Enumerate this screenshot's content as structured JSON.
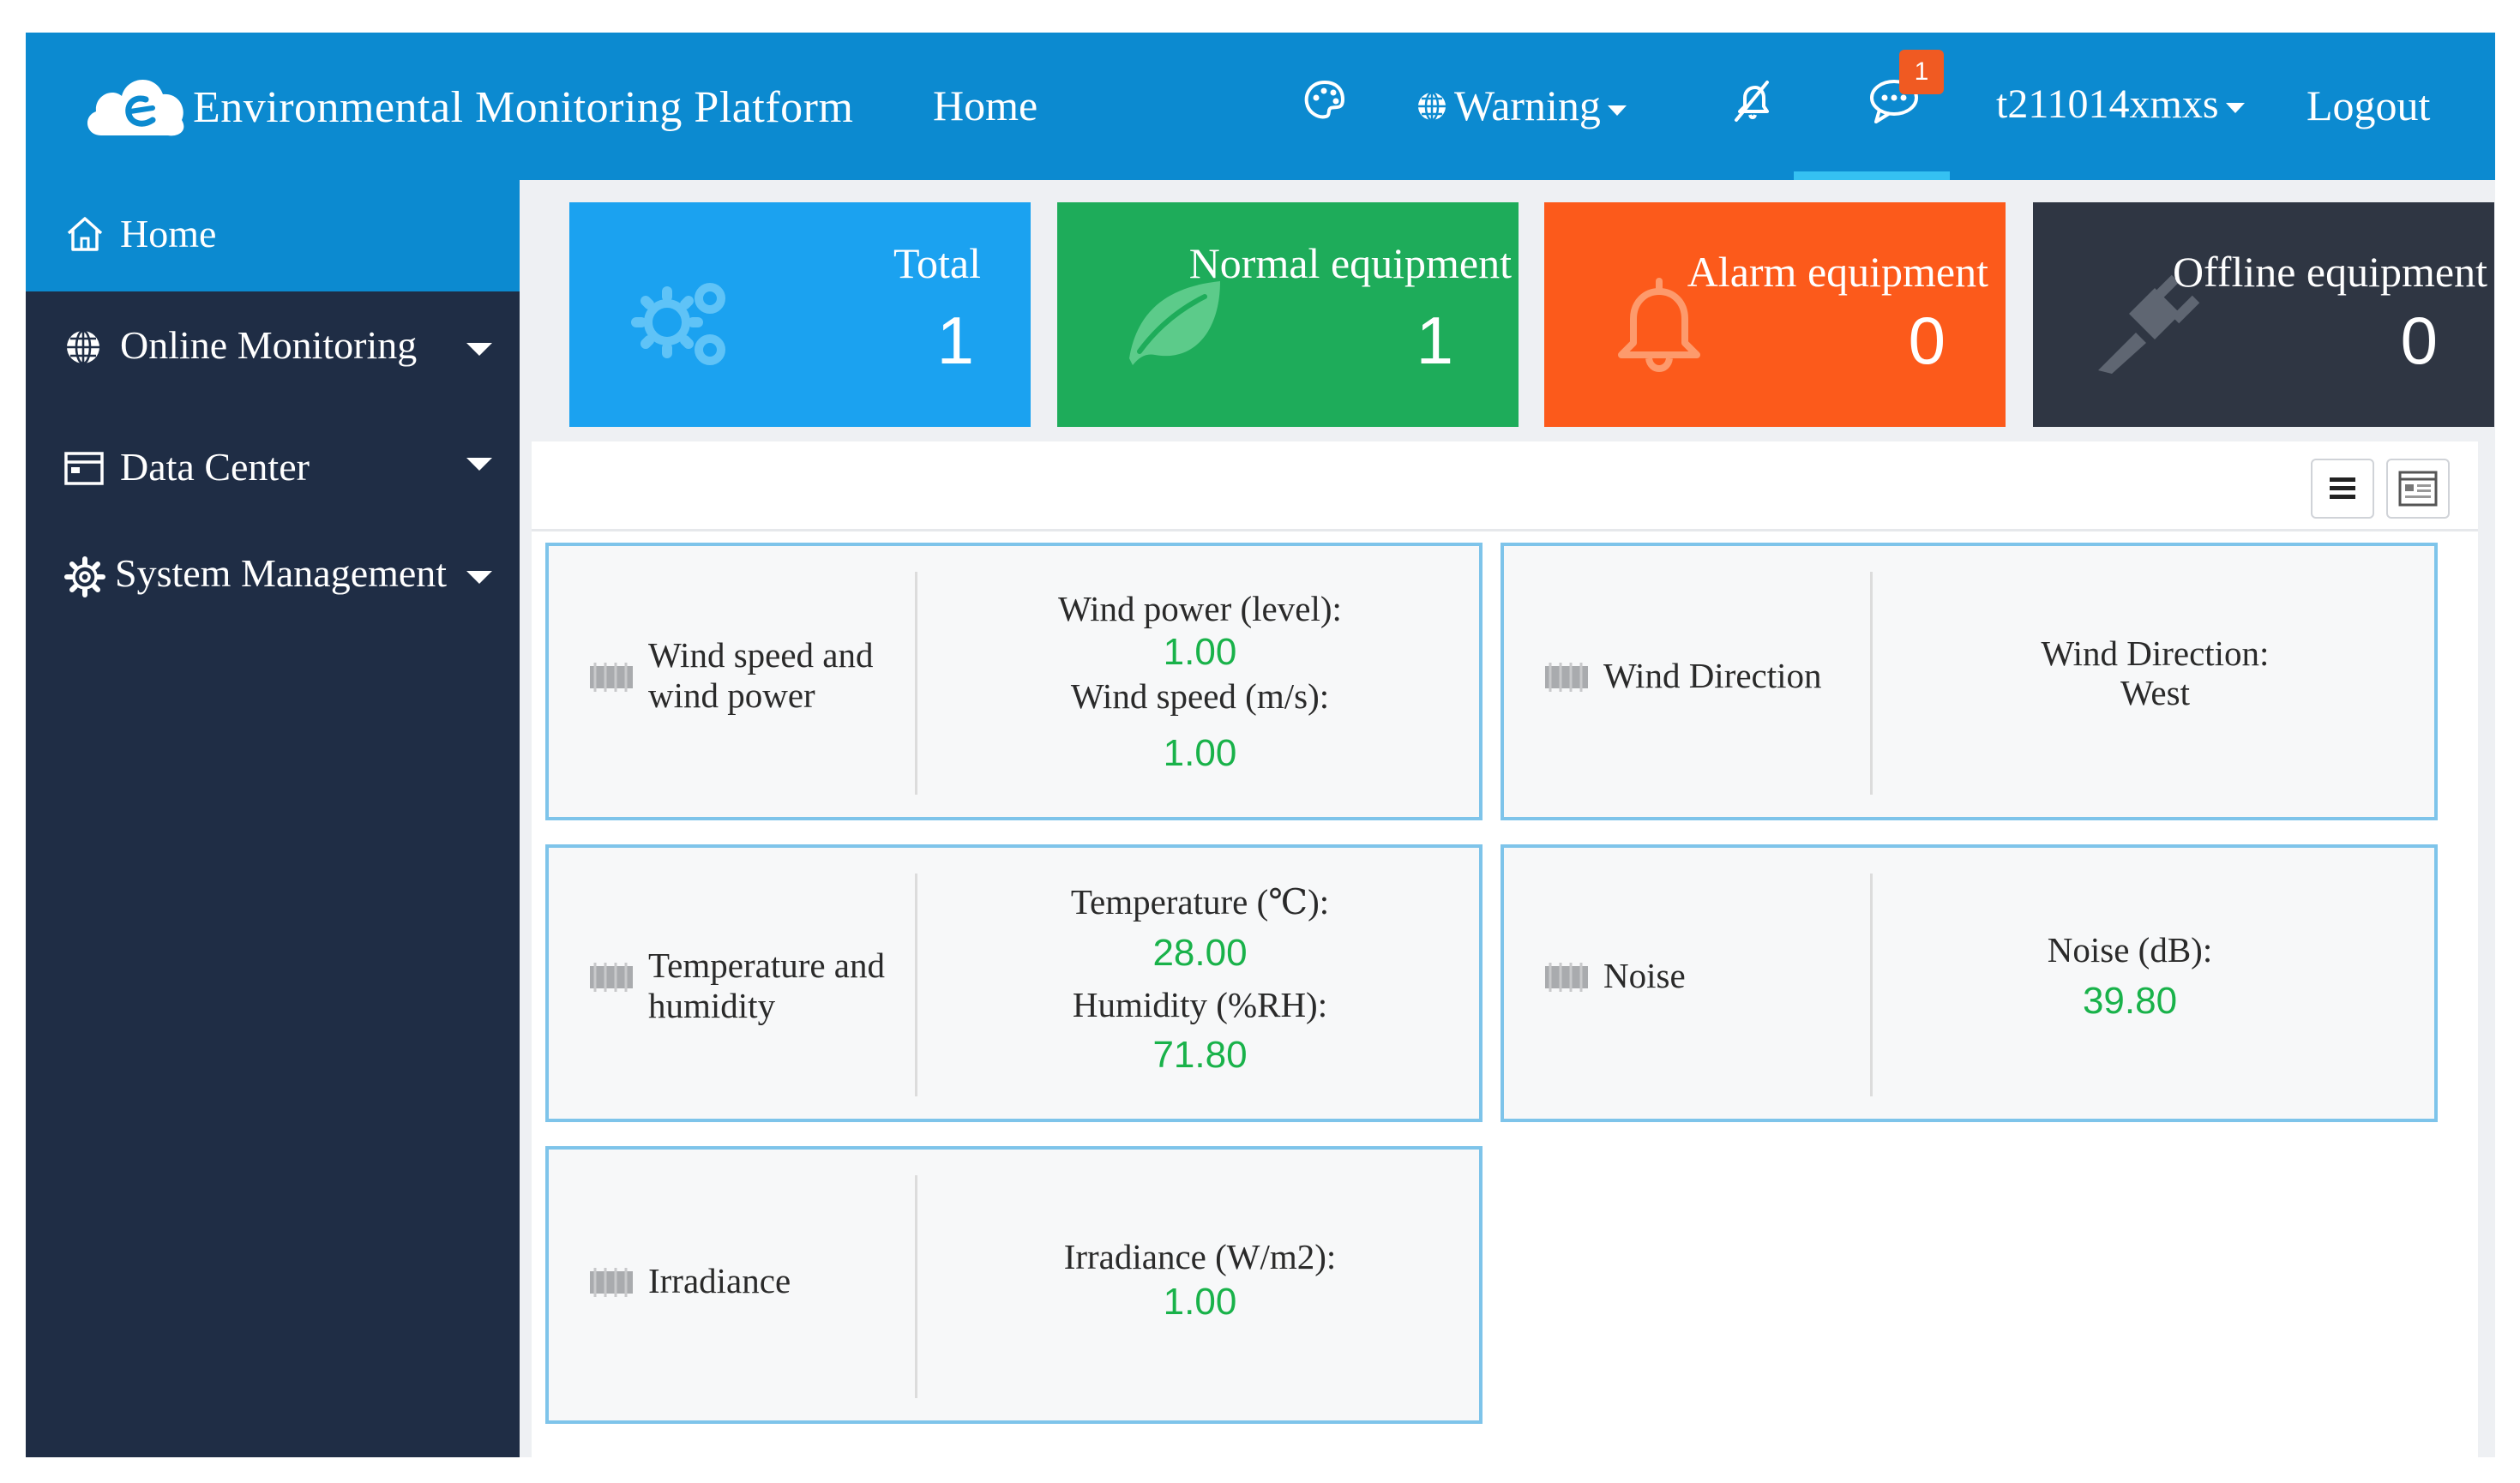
{
  "header": {
    "app_title": "Environmental Monitoring Platform",
    "nav_home": "Home",
    "warning_label": "Warning",
    "message_badge": "1",
    "username": "t211014xmxs",
    "logout_label": "Logout",
    "icons": [
      "cloud-logo-icon",
      "palette-icon",
      "globe-icon",
      "mute-icon",
      "chat-icon"
    ]
  },
  "sidebar": {
    "items": [
      {
        "label": "Home",
        "icon": "home-icon",
        "active": true
      },
      {
        "label": "Online Monitoring",
        "icon": "globe-icon"
      },
      {
        "label": "Data Center",
        "icon": "calendar-icon"
      },
      {
        "label": "System Management",
        "icon": "gear-icon"
      }
    ]
  },
  "stats": [
    {
      "title": "Total",
      "value": "1",
      "color": "#1ba2f0",
      "icon": "gears-icon"
    },
    {
      "title": "Normal equipment",
      "value": "1",
      "color": "#1eac5a",
      "icon": "leaf-icon"
    },
    {
      "title": "Alarm equipment",
      "value": "0",
      "color": "#fc5a1b",
      "icon": "bell-icon"
    },
    {
      "title": "Offline equipment",
      "value": "0",
      "color": "#2f3643",
      "icon": "plug-icon"
    }
  ],
  "toolbar": {
    "icons": [
      "list-view-icon",
      "card-view-icon"
    ]
  },
  "sensors": {
    "wind_power": {
      "name": "Wind speed and wind power",
      "label1": "Wind power (level):",
      "value1": "1.00",
      "label2": "Wind speed (m/s):",
      "value2": "1.00"
    },
    "wind_direction": {
      "name": "Wind Direction",
      "label1": "Wind Direction:",
      "text1": "West"
    },
    "temp_humidity": {
      "name": "Temperature and humidity",
      "label1": "Temperature (℃):",
      "value1": "28.00",
      "label2": "Humidity (%RH):",
      "value2": "71.80"
    },
    "noise": {
      "name": "Noise",
      "label1": "Noise (dB):",
      "value1": "39.80"
    },
    "irradiance": {
      "name": "Irradiance",
      "label1": "Irradiance (W/m2):",
      "value1": "1.00"
    }
  },
  "colors": {
    "header_bg": "#0c8ad0",
    "sidebar_bg": "#1f2d45",
    "value_green": "#19b24a",
    "card_border": "#7ec4ea",
    "badge": "#f05a22"
  }
}
